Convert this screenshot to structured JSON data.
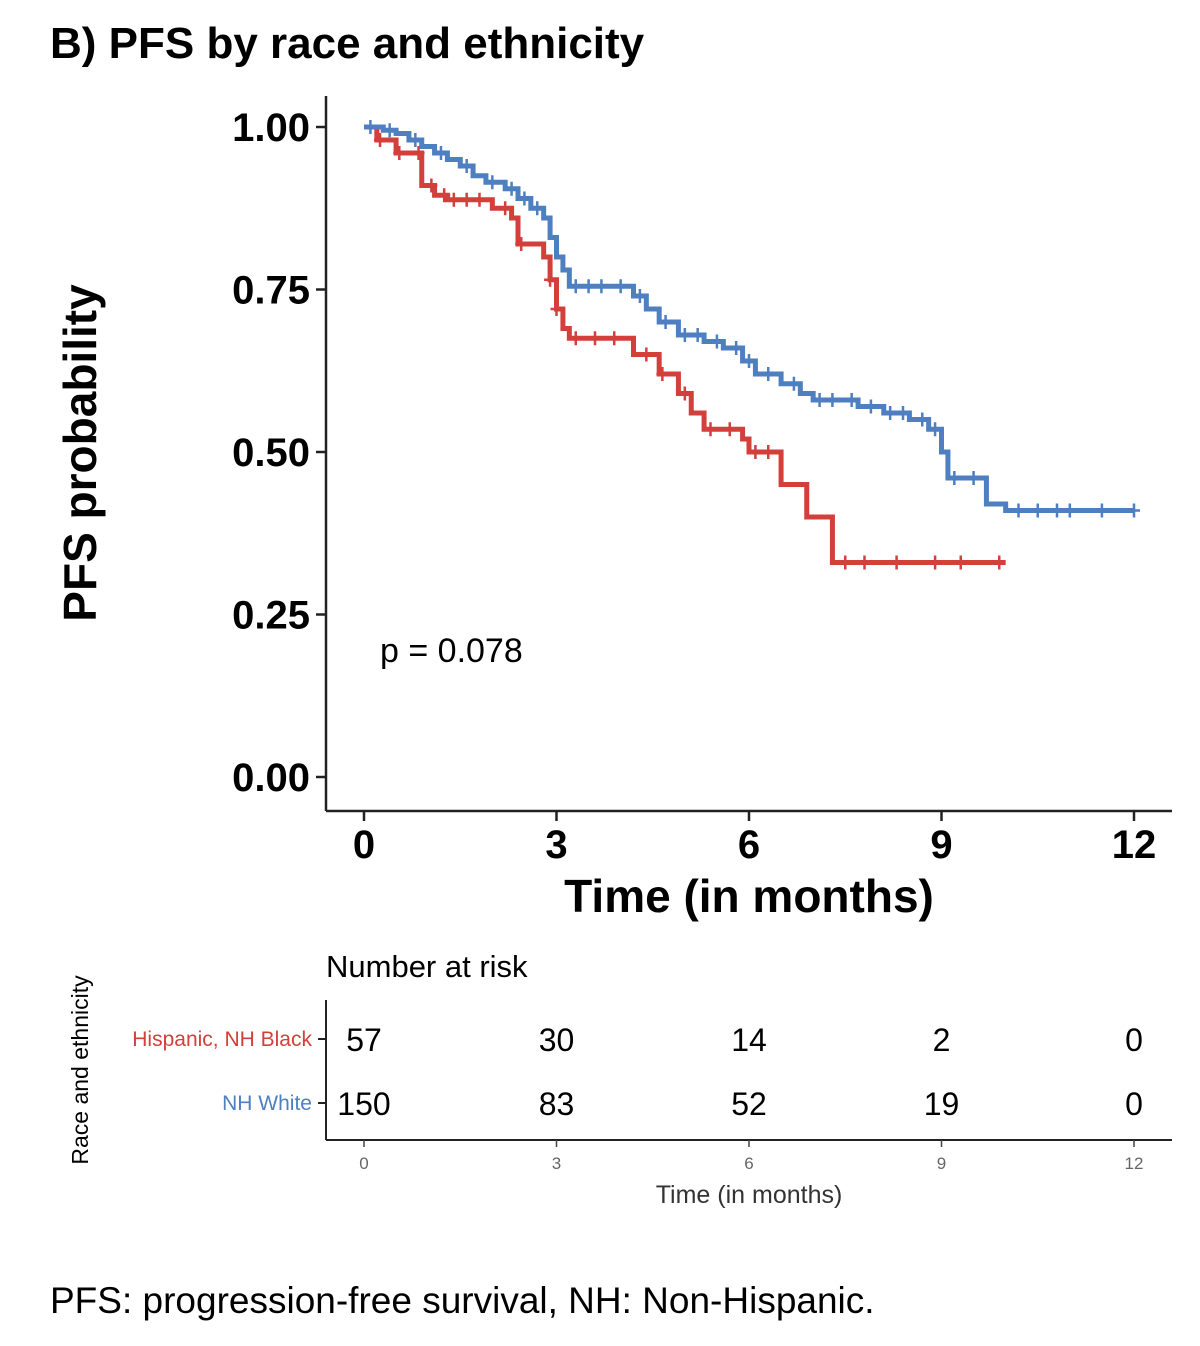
{
  "figure": {
    "title": "B) PFS by race and ethnicity",
    "caption": "PFS: progression-free survival, NH: Non-Hispanic."
  },
  "chart_data": {
    "type": "line",
    "subtype": "kaplan-meier step",
    "title": "B) PFS by race and ethnicity",
    "xlabel": "Time (in months)",
    "ylabel": "PFS probability",
    "xlim": [
      0,
      12
    ],
    "ylim": [
      0,
      1
    ],
    "x_ticks": [
      0,
      3,
      6,
      9,
      12
    ],
    "x_tick_labels": [
      "0",
      "3",
      "6",
      "9",
      "12"
    ],
    "y_ticks": [
      0,
      0.25,
      0.5,
      0.75,
      1
    ],
    "y_tick_labels": [
      "0.00",
      "0.25",
      "0.50",
      "0.75",
      "1.00"
    ],
    "grid": false,
    "annotation": "p = 0.078",
    "series": [
      {
        "name": "Hispanic, NH Black",
        "color": "#d33f3a",
        "steps": [
          [
            0,
            1.0
          ],
          [
            0.2,
            0.98
          ],
          [
            0.5,
            0.96
          ],
          [
            0.9,
            0.91
          ],
          [
            1.1,
            0.895
          ],
          [
            1.3,
            0.888
          ],
          [
            2.0,
            0.875
          ],
          [
            2.3,
            0.86
          ],
          [
            2.4,
            0.82
          ],
          [
            2.8,
            0.8
          ],
          [
            2.9,
            0.765
          ],
          [
            3.0,
            0.72
          ],
          [
            3.1,
            0.69
          ],
          [
            3.2,
            0.675
          ],
          [
            4.2,
            0.65
          ],
          [
            4.6,
            0.62
          ],
          [
            4.9,
            0.59
          ],
          [
            5.1,
            0.56
          ],
          [
            5.3,
            0.535
          ],
          [
            5.9,
            0.52
          ],
          [
            6.0,
            0.5
          ],
          [
            6.5,
            0.45
          ],
          [
            6.9,
            0.4
          ],
          [
            7.3,
            0.33
          ],
          [
            10.0,
            0.33
          ]
        ],
        "censor_times": [
          0.25,
          0.55,
          0.85,
          1.05,
          1.25,
          1.4,
          1.6,
          1.8,
          2.2,
          2.45,
          2.9,
          3.0,
          3.3,
          3.6,
          3.9,
          4.4,
          4.65,
          5.0,
          5.4,
          5.7,
          6.1,
          6.3,
          7.5,
          7.8,
          8.3,
          8.9,
          9.3,
          9.9
        ]
      },
      {
        "name": "NH White",
        "color": "#4e7fc1",
        "steps": [
          [
            0,
            1.0
          ],
          [
            0.3,
            0.995
          ],
          [
            0.5,
            0.99
          ],
          [
            0.7,
            0.98
          ],
          [
            0.9,
            0.97
          ],
          [
            1.1,
            0.96
          ],
          [
            1.3,
            0.95
          ],
          [
            1.5,
            0.94
          ],
          [
            1.7,
            0.925
          ],
          [
            1.9,
            0.915
          ],
          [
            2.2,
            0.905
          ],
          [
            2.4,
            0.89
          ],
          [
            2.6,
            0.875
          ],
          [
            2.8,
            0.86
          ],
          [
            2.9,
            0.83
          ],
          [
            3.0,
            0.8
          ],
          [
            3.1,
            0.78
          ],
          [
            3.2,
            0.755
          ],
          [
            4.2,
            0.74
          ],
          [
            4.4,
            0.72
          ],
          [
            4.6,
            0.7
          ],
          [
            4.9,
            0.68
          ],
          [
            5.3,
            0.67
          ],
          [
            5.6,
            0.66
          ],
          [
            5.9,
            0.64
          ],
          [
            6.1,
            0.62
          ],
          [
            6.5,
            0.605
          ],
          [
            6.8,
            0.59
          ],
          [
            7.0,
            0.58
          ],
          [
            7.7,
            0.57
          ],
          [
            8.1,
            0.56
          ],
          [
            8.5,
            0.55
          ],
          [
            8.8,
            0.535
          ],
          [
            9.0,
            0.5
          ],
          [
            9.1,
            0.46
          ],
          [
            9.7,
            0.42
          ],
          [
            10.0,
            0.41
          ],
          [
            12.0,
            0.41
          ]
        ],
        "censor_times": [
          0.1,
          0.4,
          0.8,
          1.2,
          1.6,
          2.0,
          2.3,
          2.5,
          2.7,
          3.3,
          3.5,
          3.7,
          4.0,
          4.3,
          4.7,
          5.0,
          5.2,
          5.5,
          5.8,
          6.0,
          6.3,
          6.7,
          7.1,
          7.3,
          7.6,
          7.9,
          8.2,
          8.4,
          8.7,
          8.9,
          9.2,
          9.5,
          10.2,
          10.5,
          10.8,
          11.0,
          11.5,
          12.0
        ]
      }
    ]
  },
  "risk_table": {
    "title": "Number at risk",
    "ylabel": "Race and ethnicity",
    "xlabel": "Time (in months)",
    "x_ticks": [
      "0",
      "3",
      "6",
      "9",
      "12"
    ],
    "rows": [
      {
        "label": "Hispanic, NH Black",
        "color": "#d33f3a",
        "values": [
          "57",
          "30",
          "14",
          "2",
          "0"
        ]
      },
      {
        "label": "NH White",
        "color": "#4e7fc1",
        "values": [
          "150",
          "83",
          "52",
          "19",
          "0"
        ]
      }
    ]
  }
}
